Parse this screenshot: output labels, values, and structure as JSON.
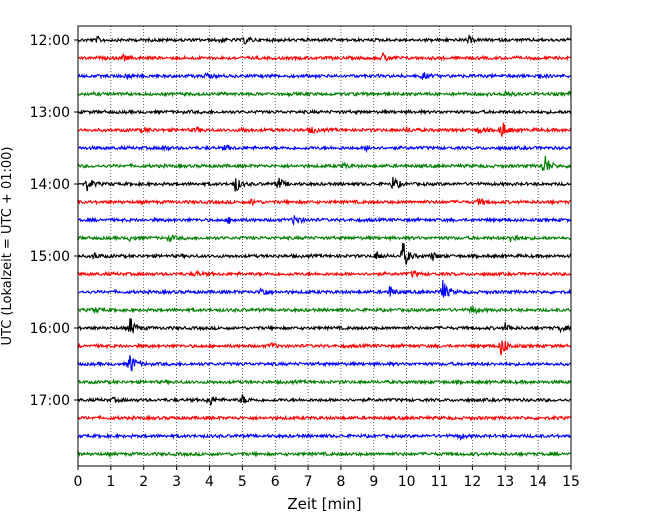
{
  "chart_data": {
    "type": "line",
    "subtype": "seismogram-helicorder",
    "xlabel": "Zeit  [min]",
    "ylabel": "UTC (Lokalzeit = UTC + 01:00)",
    "xlim": [
      0,
      15
    ],
    "x_ticks": [
      "0",
      "1",
      "2",
      "3",
      "4",
      "5",
      "6",
      "7",
      "8",
      "9",
      "10",
      "11",
      "12",
      "13",
      "14",
      "15"
    ],
    "y_tick_labels": [
      "12:00",
      "13:00",
      "14:00",
      "15:00",
      "16:00",
      "17:00"
    ],
    "grid": "vertical-dotted",
    "trace_colors": [
      "#000000",
      "#ff0000",
      "#0000ff",
      "#008000"
    ],
    "traces": [
      {
        "start": "12:00",
        "color": "#000000",
        "events": [
          [
            0.6,
            0.25
          ],
          [
            4.3,
            0.3
          ],
          [
            5.1,
            0.4
          ],
          [
            11.9,
            0.3
          ]
        ]
      },
      {
        "start": "12:15",
        "color": "#ff0000",
        "events": [
          [
            1.4,
            0.3
          ],
          [
            9.3,
            0.5
          ]
        ]
      },
      {
        "start": "12:30",
        "color": "#0000ff",
        "events": [
          [
            1.5,
            0.3
          ],
          [
            3.9,
            0.25
          ],
          [
            10.5,
            0.35
          ],
          [
            14.0,
            0.3
          ]
        ]
      },
      {
        "start": "12:45",
        "color": "#008000",
        "events": [
          [
            13.0,
            0.35
          ],
          [
            15.0,
            0.4
          ]
        ]
      },
      {
        "start": "13:00",
        "color": "#000000",
        "events": []
      },
      {
        "start": "13:15",
        "color": "#ff0000",
        "events": [
          [
            2.0,
            0.25
          ],
          [
            3.6,
            0.25
          ],
          [
            5.0,
            0.25
          ],
          [
            7.1,
            0.35
          ],
          [
            10.0,
            0.25
          ],
          [
            12.2,
            0.4
          ],
          [
            12.9,
            1.0
          ]
        ]
      },
      {
        "start": "13:30",
        "color": "#0000ff",
        "events": [
          [
            2.6,
            0.25
          ],
          [
            4.5,
            0.25
          ],
          [
            8.8,
            0.25
          ]
        ]
      },
      {
        "start": "13:45",
        "color": "#008000",
        "events": [
          [
            8.1,
            0.25
          ],
          [
            14.2,
            1.4
          ]
        ]
      },
      {
        "start": "14:00",
        "color": "#000000",
        "events": [
          [
            0.3,
            0.7
          ],
          [
            4.8,
            0.9
          ],
          [
            6.1,
            0.7
          ],
          [
            9.6,
            0.8
          ]
        ]
      },
      {
        "start": "14:15",
        "color": "#ff0000",
        "events": [
          [
            5.3,
            0.3
          ],
          [
            12.2,
            0.35
          ]
        ]
      },
      {
        "start": "14:30",
        "color": "#0000ff",
        "events": [
          [
            4.6,
            0.3
          ],
          [
            6.6,
            0.6
          ]
        ]
      },
      {
        "start": "14:45",
        "color": "#008000",
        "events": [
          [
            1.6,
            0.25
          ],
          [
            2.8,
            0.3
          ],
          [
            13.2,
            0.6
          ]
        ]
      },
      {
        "start": "15:00",
        "color": "#000000",
        "events": [
          [
            0.5,
            0.3
          ],
          [
            9.1,
            0.4
          ],
          [
            9.9,
            1.6
          ],
          [
            10.8,
            0.4
          ]
        ]
      },
      {
        "start": "15:15",
        "color": "#ff0000",
        "events": [
          [
            3.6,
            0.25
          ],
          [
            10.2,
            0.3
          ]
        ]
      },
      {
        "start": "15:30",
        "color": "#0000ff",
        "events": [
          [
            5.6,
            0.6
          ],
          [
            9.5,
            0.6
          ],
          [
            11.1,
            1.3
          ]
        ]
      },
      {
        "start": "15:45",
        "color": "#008000",
        "events": [
          [
            0.5,
            0.3
          ],
          [
            12.0,
            0.5
          ]
        ]
      },
      {
        "start": "16:00",
        "color": "#000000",
        "events": [
          [
            1.6,
            1.1
          ],
          [
            13.0,
            0.5
          ],
          [
            14.7,
            0.3
          ]
        ]
      },
      {
        "start": "16:15",
        "color": "#ff0000",
        "events": [
          [
            5.9,
            0.3
          ],
          [
            12.9,
            1.3
          ]
        ]
      },
      {
        "start": "16:30",
        "color": "#0000ff",
        "events": [
          [
            1.6,
            1.3
          ]
        ]
      },
      {
        "start": "16:45",
        "color": "#008000",
        "events": []
      },
      {
        "start": "17:00",
        "color": "#000000",
        "events": [
          [
            1.1,
            0.2
          ],
          [
            4.0,
            0.7
          ],
          [
            5.0,
            0.5
          ]
        ]
      },
      {
        "start": "17:15",
        "color": "#ff0000",
        "events": []
      },
      {
        "start": "17:30",
        "color": "#0000ff",
        "events": [
          [
            11.6,
            0.3
          ]
        ]
      },
      {
        "start": "17:45",
        "color": "#008000",
        "events": []
      }
    ]
  }
}
